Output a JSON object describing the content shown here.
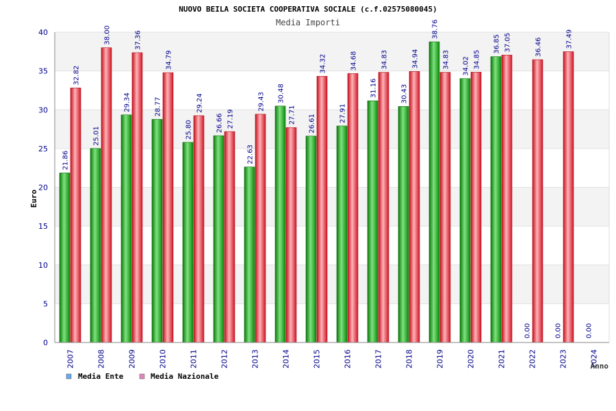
{
  "chart_data": {
    "type": "bar",
    "title": "NUOVO BEILA SOCIETA COOPERATIVA SOCIALE (c.f.02575080045)",
    "subtitle": "Media Importi",
    "ylabel": "Euro",
    "xlabel": "Anno",
    "ylim": [
      0,
      40
    ],
    "yticks": [
      0,
      5,
      10,
      15,
      20,
      25,
      30,
      35,
      40
    ],
    "grid": true,
    "legend_position": "bottom-left",
    "categories": [
      "2007",
      "2008",
      "2009",
      "2010",
      "2011",
      "2012",
      "2013",
      "2014",
      "2015",
      "2016",
      "2017",
      "2018",
      "2019",
      "2020",
      "2021",
      "2022",
      "2023",
      "2024"
    ],
    "series": [
      {
        "name": "Media Ente",
        "legend_color": "#66aaee",
        "bar_color": "#11aa11",
        "values": [
          21.86,
          25.01,
          29.34,
          28.77,
          25.8,
          26.66,
          22.63,
          30.48,
          26.61,
          27.91,
          31.16,
          30.43,
          38.76,
          34.02,
          36.85,
          0.0,
          0.0,
          0.0
        ],
        "labels": [
          "21.86",
          "25.01",
          "29.34",
          "28.77",
          "25.80",
          "26.66",
          "22.63",
          "30.48",
          "26.61",
          "27.91",
          "31.16",
          "30.43",
          "38.76",
          "34.02",
          "36.85",
          "0.00",
          "0.00",
          "0.00"
        ]
      },
      {
        "name": "Media Nazionale",
        "legend_color": "#dd88bb",
        "bar_color": "#ee2233",
        "values": [
          32.82,
          38.0,
          37.36,
          34.79,
          29.24,
          27.19,
          29.43,
          27.71,
          34.32,
          34.68,
          34.83,
          34.94,
          34.83,
          34.85,
          37.05,
          36.46,
          37.49,
          null
        ],
        "labels": [
          "32.82",
          "38.00",
          "37.36",
          "34.79",
          "29.24",
          "27.19",
          "29.43",
          "27.71",
          "34.32",
          "34.68",
          "34.83",
          "34.94",
          "34.83",
          "34.85",
          "37.05",
          "36.46",
          "37.49",
          ""
        ]
      }
    ]
  }
}
